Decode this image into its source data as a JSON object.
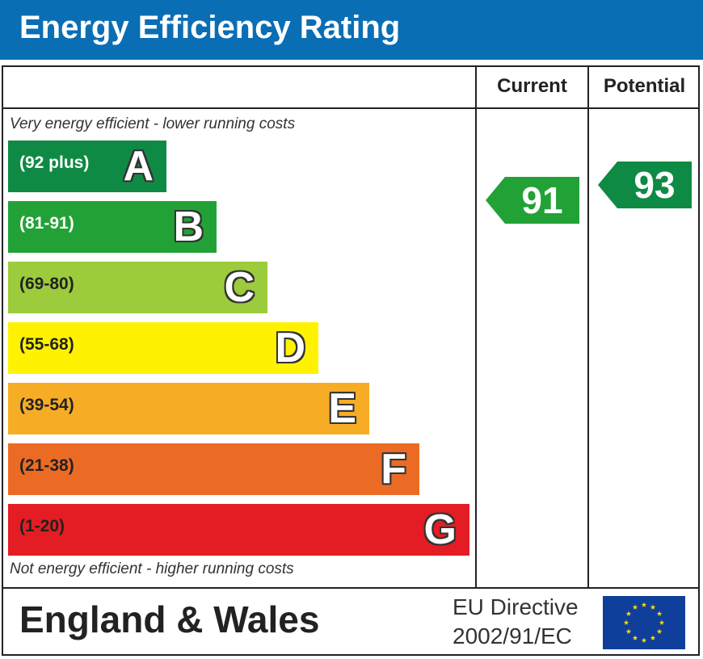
{
  "header": {
    "title": "Energy Efficiency Rating"
  },
  "columns": {
    "current": "Current",
    "potential": "Potential"
  },
  "captions": {
    "top": "Very energy efficient - lower running costs",
    "bottom": "Not energy efficient - higher running costs"
  },
  "chart_data": {
    "type": "bar",
    "title": "Energy Efficiency Rating",
    "bands": [
      {
        "letter": "A",
        "range": "(92 plus)",
        "color": "#0f8a44",
        "text_color": "#ffffff"
      },
      {
        "letter": "B",
        "range": "(81-91)",
        "color": "#22a236",
        "text_color": "#ffffff"
      },
      {
        "letter": "C",
        "range": "(69-80)",
        "color": "#9ccb3b",
        "text_color": "#222222"
      },
      {
        "letter": "D",
        "range": "(55-68)",
        "color": "#fff200",
        "text_color": "#222222"
      },
      {
        "letter": "E",
        "range": "(39-54)",
        "color": "#f6ad25",
        "text_color": "#222222"
      },
      {
        "letter": "F",
        "range": "(21-38)",
        "color": "#ec6b24",
        "text_color": "#222222"
      },
      {
        "letter": "G",
        "range": "(1-20)",
        "color": "#e31d23",
        "text_color": "#222222"
      }
    ],
    "current": {
      "value": "91",
      "band": "B",
      "color": "#22a236"
    },
    "potential": {
      "value": "93",
      "band": "A",
      "color": "#0f8a44"
    }
  },
  "footer": {
    "region": "England & Wales",
    "directive_line1": "EU Directive",
    "directive_line2": "2002/91/EC"
  },
  "colors": {
    "title_bar": "#0a6eb4",
    "eu_flag": "#103f9b",
    "eu_stars": "#ffde00"
  }
}
